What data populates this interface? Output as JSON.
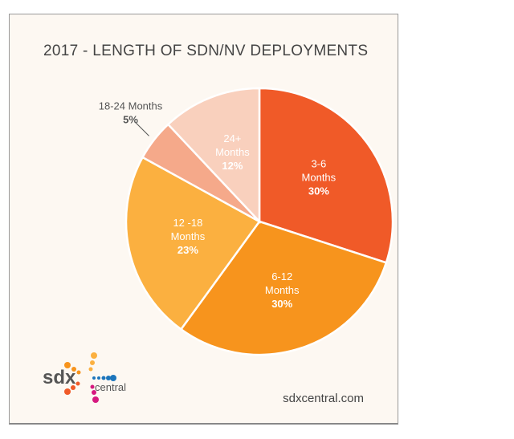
{
  "chart_data": {
    "type": "pie",
    "title": "2017 - LENGTH OF SDN/NV DEPLOYMENTS",
    "slices": [
      {
        "label": "3-6 Months",
        "value": 30,
        "pct_label": "30%",
        "color": "#f05a28"
      },
      {
        "label": "6-12 Months",
        "value": 30,
        "pct_label": "30%",
        "color": "#f7941d"
      },
      {
        "label": "12 -18 Months",
        "value": 23,
        "pct_label": "23%",
        "color": "#fbb040"
      },
      {
        "label": "18-24 Months",
        "value": 5,
        "pct_label": "5%",
        "color": "#f5a98a"
      },
      {
        "label": "24+ Months",
        "value": 12,
        "pct_label": "12%",
        "color": "#f9d0bd"
      }
    ]
  },
  "footer": {
    "site": "sdxcentral.com",
    "logo": "sdx central"
  }
}
